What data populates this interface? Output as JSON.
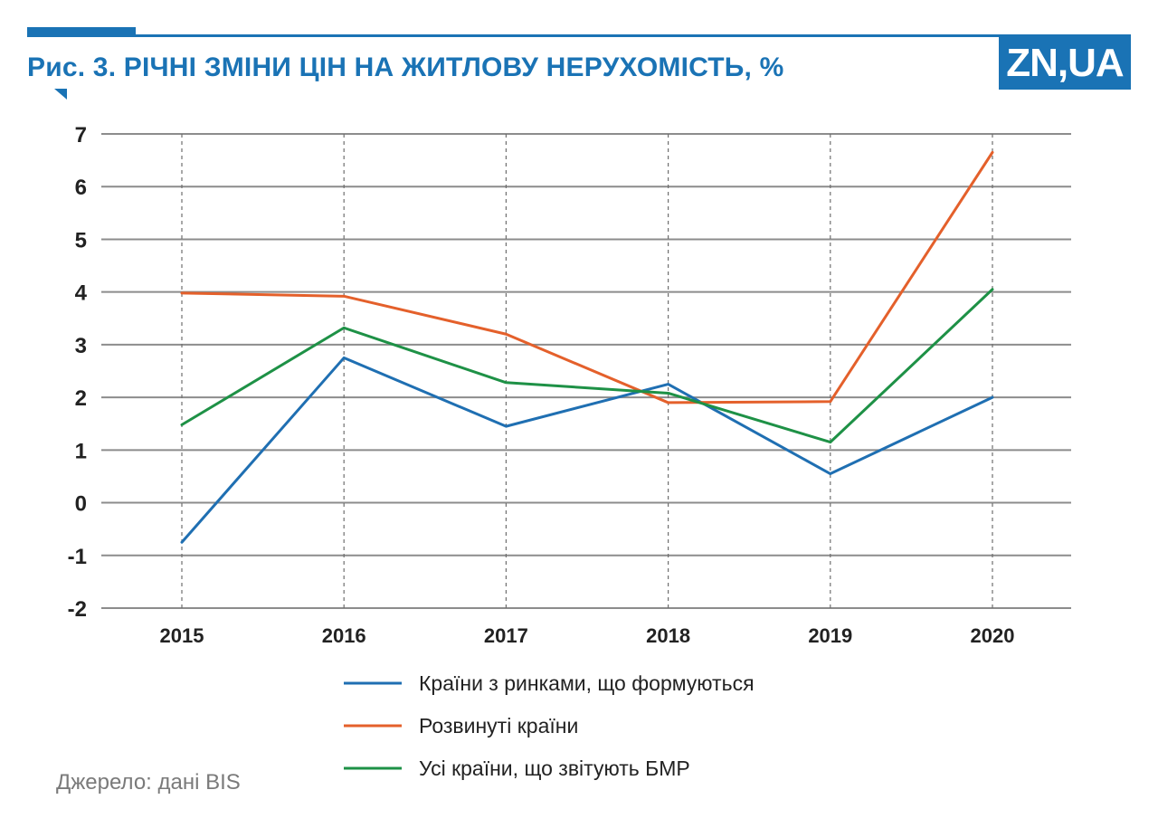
{
  "title": "Рис. 3. РІЧНІ ЗМІНИ ЦІН НА ЖИТЛОВУ НЕРУХОМІСТЬ, %",
  "logo": "ZN,UA",
  "source": "Джерело: дані BIS",
  "colors": {
    "brand": "#1a73b5",
    "grid": "#8c8c8c",
    "text": "#222222"
  },
  "chart_data": {
    "type": "line",
    "title": "Рис. 3. РІЧНІ ЗМІНИ ЦІН НА ЖИТЛОВУ НЕРУХОМІСТЬ, %",
    "xlabel": "",
    "ylabel": "",
    "ylim": [
      -2,
      7
    ],
    "yticks": [
      -2,
      -1,
      0,
      1,
      2,
      3,
      4,
      5,
      6,
      7
    ],
    "categories": [
      "2015",
      "2016",
      "2017",
      "2018",
      "2019",
      "2020"
    ],
    "grid": true,
    "legend_position": "bottom",
    "series": [
      {
        "name": "Країни з ринками, що формуються",
        "color": "#1f6fb2",
        "values": [
          -0.75,
          2.75,
          1.45,
          2.25,
          0.55,
          2.0
        ]
      },
      {
        "name": "Розвинуті країни",
        "color": "#e4602b",
        "values": [
          3.98,
          3.92,
          3.2,
          1.9,
          1.92,
          6.65
        ]
      },
      {
        "name": "Усі країни, що звітують БМР",
        "color": "#1e9146",
        "values": [
          1.48,
          3.32,
          2.28,
          2.08,
          1.15,
          4.05
        ]
      }
    ]
  }
}
